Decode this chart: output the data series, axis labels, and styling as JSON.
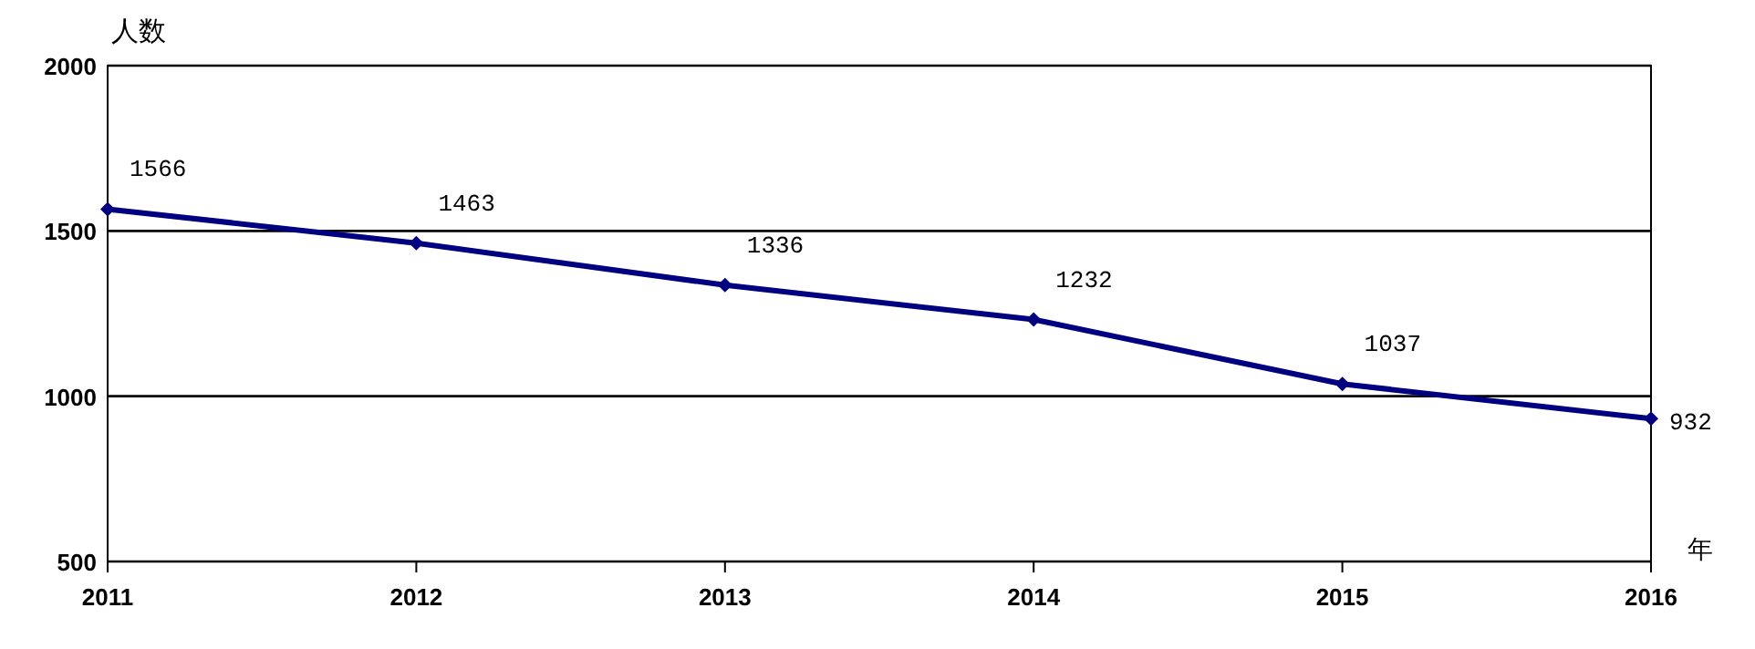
{
  "chart_data": {
    "type": "line",
    "ylabel": "人数",
    "xlabel": "年",
    "x": [
      2011,
      2012,
      2013,
      2014,
      2015,
      2016
    ],
    "series": [
      {
        "color": "#000080",
        "values": [
          1566,
          1463,
          1336,
          1232,
          1037,
          932
        ]
      }
    ],
    "xlim": [
      2011,
      2016
    ],
    "xticks": [
      2011,
      2012,
      2013,
      2014,
      2015,
      2016
    ],
    "ylim": [
      500,
      2000
    ],
    "yticks": [
      500,
      1000,
      1500,
      2000
    ],
    "grid": "y",
    "marker": "diamond",
    "line_style": "solid",
    "data_labels": true
  }
}
